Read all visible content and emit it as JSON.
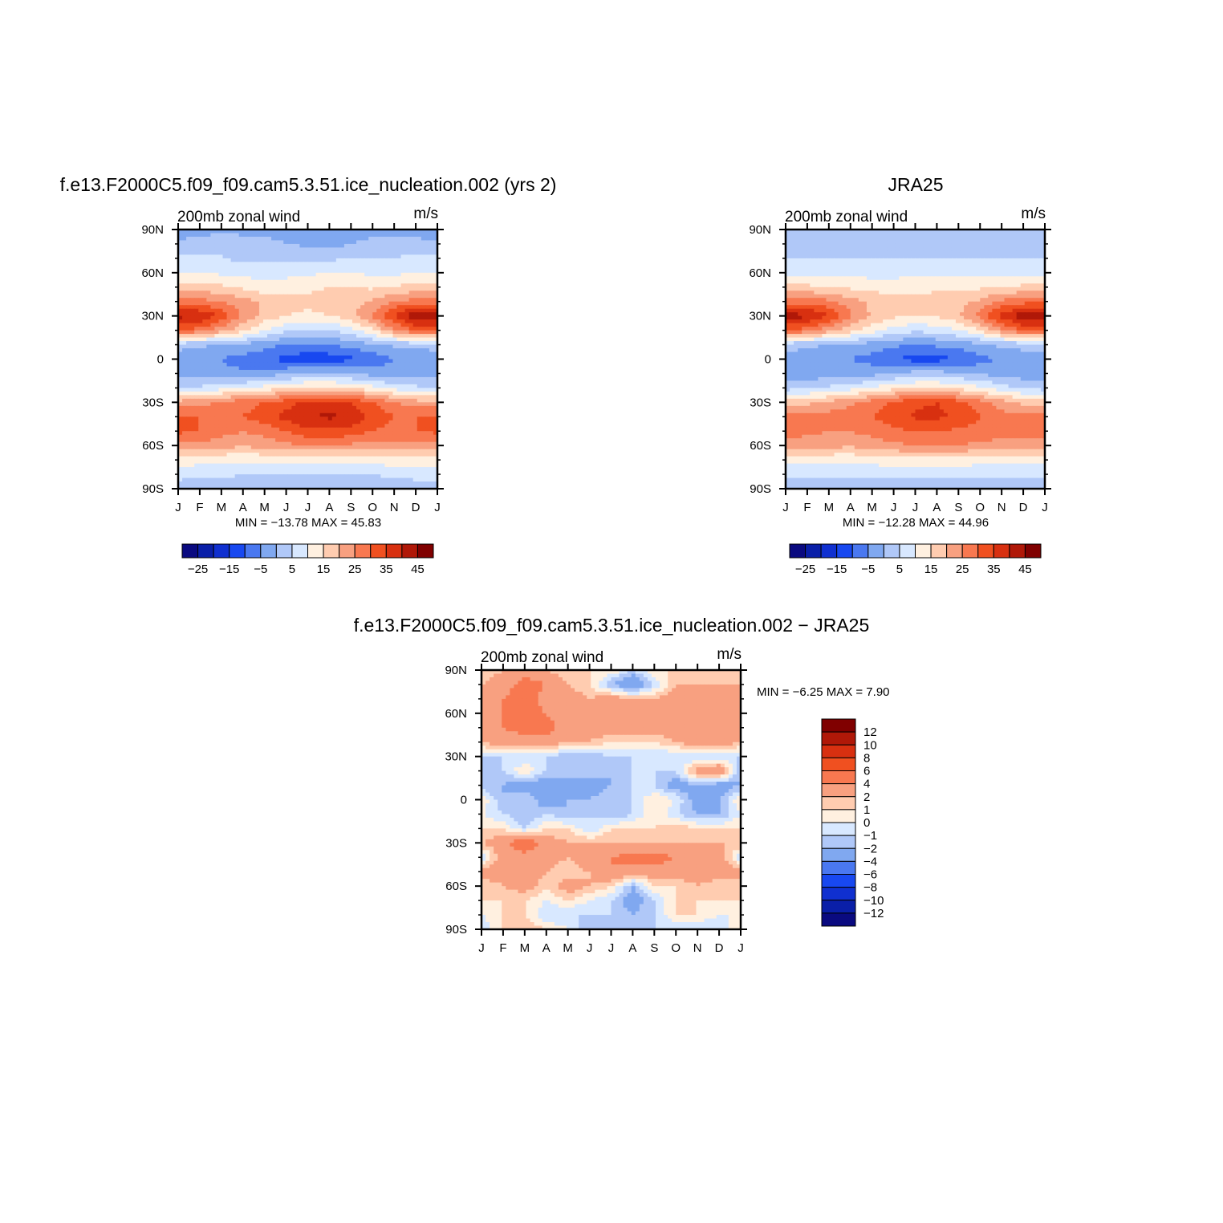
{
  "panels": [
    {
      "title": "f.e13.F2000C5.f09_f09.cam5.3.51.ice_nucleation.002  (yrs  2)",
      "left_label": "200mb  zonal  wind",
      "right_label": "m/s",
      "min_max": "MIN  =   −13.78  MAX  =     45.83",
      "colorbar_labels": [
        "−25",
        "−15",
        "−5",
        "5",
        "15",
        "25",
        "35",
        "45"
      ]
    },
    {
      "title": "JRA25",
      "left_label": "200mb  zonal  wind",
      "right_label": "m/s",
      "min_max": "MIN  =   −12.28  MAX  =     44.96",
      "colorbar_labels": [
        "−25",
        "−15",
        "−5",
        "5",
        "15",
        "25",
        "35",
        "45"
      ]
    },
    {
      "title": "f.e13.F2000C5.f09_f09.cam5.3.51.ice_nucleation.002  −  JRA25",
      "left_label": "200mb  zonal  wind",
      "right_label": "m/s",
      "min_max": "MIN  =     −6.25  MAX  =       7.90",
      "colorbar_labels": [
        "12",
        "10",
        "8",
        "6",
        "4",
        "2",
        "1",
        "0",
        "−1",
        "−2",
        "−4",
        "−6",
        "−8",
        "−10",
        "−12"
      ]
    }
  ],
  "chart_data": [
    {
      "type": "heatmap",
      "title": "f.e13.F2000C5.f09_f09.cam5.3.51.ice_nucleation.002  (yrs  2)",
      "variable": "200mb zonal wind",
      "units": "m/s",
      "x_ticks": [
        "J",
        "F",
        "M",
        "A",
        "M",
        "J",
        "J",
        "A",
        "S",
        "O",
        "N",
        "D",
        "J"
      ],
      "y_ticks": [
        "90N",
        "60N",
        "30N",
        "0",
        "30S",
        "60S",
        "90S"
      ],
      "x_range": [
        0,
        12
      ],
      "y_range": [
        -90,
        90
      ],
      "min": -13.78,
      "max": 45.83,
      "contour_levels": [
        -25,
        -20,
        -15,
        -10,
        -5,
        0,
        5,
        10,
        15,
        20,
        25,
        30,
        35,
        40,
        45
      ],
      "colors": [
        "#0a0a80",
        "#0a1fa8",
        "#1030d0",
        "#1848f0",
        "#4a78f0",
        "#80a8f0",
        "#b0c8f8",
        "#d8e8ff",
        "#fff0e0",
        "#ffccb0",
        "#f8a080",
        "#f87850",
        "#f05020",
        "#d83010",
        "#b01808",
        "#800000"
      ],
      "latitudes": [
        -90,
        -80,
        -70,
        -60,
        -50,
        -40,
        -30,
        -20,
        -10,
        0,
        10,
        20,
        30,
        40,
        50,
        60,
        70,
        80,
        90
      ],
      "months": [
        "Jan",
        "Feb",
        "Mar",
        "Apr",
        "May",
        "Jun",
        "Jul",
        "Aug",
        "Sep",
        "Oct",
        "Nov",
        "Dec",
        "Jan"
      ],
      "values": [
        [
          2,
          2,
          2,
          2,
          2,
          2,
          1,
          1,
          1,
          2,
          2,
          2,
          2
        ],
        [
          7,
          6,
          6,
          5,
          5,
          5,
          5,
          5,
          5,
          5,
          6,
          7,
          7
        ],
        [
          13,
          12,
          11,
          11,
          11,
          11,
          11,
          11,
          11,
          12,
          13,
          13,
          13
        ],
        [
          24,
          24,
          22,
          21,
          22,
          24,
          25,
          25,
          24,
          23,
          24,
          24,
          24
        ],
        [
          31,
          30,
          27,
          25,
          27,
          30,
          34,
          34,
          33,
          30,
          28,
          30,
          31
        ],
        [
          30,
          30,
          30,
          30,
          33,
          37,
          40,
          41,
          39,
          34,
          30,
          30,
          30
        ],
        [
          22,
          23,
          26,
          28,
          30,
          33,
          36,
          37,
          35,
          30,
          25,
          22,
          22
        ],
        [
          5,
          6,
          8,
          10,
          12,
          14,
          16,
          16,
          14,
          12,
          8,
          6,
          5
        ],
        [
          -2,
          -3,
          -4,
          -4,
          -3,
          -1,
          1,
          1,
          0,
          -2,
          -3,
          -2,
          -2
        ],
        [
          -3,
          -4,
          -5,
          -7,
          -9,
          -12,
          -13,
          -13,
          -11,
          -8,
          -5,
          -4,
          -3
        ],
        [
          2,
          1,
          0,
          -1,
          -3,
          -5,
          -6,
          -5,
          -3,
          -1,
          1,
          2,
          2
        ],
        [
          30,
          28,
          22,
          16,
          10,
          6,
          4,
          5,
          8,
          14,
          24,
          30,
          30
        ],
        [
          42,
          40,
          34,
          24,
          18,
          15,
          14,
          15,
          18,
          26,
          36,
          44,
          45
        ],
        [
          27,
          27,
          25,
          22,
          19,
          17,
          16,
          17,
          18,
          21,
          25,
          27,
          27
        ],
        [
          17,
          17,
          16,
          14,
          12,
          13,
          14,
          15,
          15,
          14,
          15,
          17,
          17
        ],
        [
          10,
          10,
          9,
          8,
          8,
          8,
          9,
          10,
          10,
          9,
          9,
          10,
          10
        ],
        [
          6,
          6,
          5,
          4,
          4,
          4,
          4,
          4,
          5,
          5,
          5,
          6,
          6
        ],
        [
          1,
          3,
          5,
          3,
          2,
          0,
          -1,
          -2,
          0,
          2,
          3,
          2,
          1
        ],
        [
          -3,
          -3,
          -2,
          -2,
          -2,
          -3,
          -3,
          -3,
          -3,
          -3,
          -3,
          -3,
          -3
        ]
      ]
    },
    {
      "type": "heatmap",
      "title": "JRA25",
      "variable": "200mb zonal wind",
      "units": "m/s",
      "x_ticks": [
        "J",
        "F",
        "M",
        "A",
        "M",
        "J",
        "J",
        "A",
        "S",
        "O",
        "N",
        "D",
        "J"
      ],
      "y_ticks": [
        "90N",
        "60N",
        "30N",
        "0",
        "30S",
        "60S",
        "90S"
      ],
      "x_range": [
        0,
        12
      ],
      "y_range": [
        -90,
        90
      ],
      "min": -12.28,
      "max": 44.96,
      "contour_levels": [
        -25,
        -20,
        -15,
        -10,
        -5,
        0,
        5,
        10,
        15,
        20,
        25,
        30,
        35,
        40,
        45
      ],
      "colors": [
        "#0a0a80",
        "#0a1fa8",
        "#1030d0",
        "#1848f0",
        "#4a78f0",
        "#80a8f0",
        "#b0c8f8",
        "#d8e8ff",
        "#fff0e0",
        "#ffccb0",
        "#f8a080",
        "#f87850",
        "#f05020",
        "#d83010",
        "#b01808",
        "#800000"
      ],
      "latitudes": [
        -90,
        -80,
        -70,
        -60,
        -50,
        -40,
        -30,
        -20,
        -10,
        0,
        10,
        20,
        30,
        40,
        50,
        60,
        70,
        80,
        90
      ],
      "months": [
        "Jan",
        "Feb",
        "Mar",
        "Apr",
        "May",
        "Jun",
        "Jul",
        "Aug",
        "Sep",
        "Oct",
        "Nov",
        "Dec",
        "Jan"
      ],
      "values": [
        [
          3,
          3,
          3,
          3,
          3,
          3,
          3,
          3,
          3,
          3,
          3,
          3,
          3
        ],
        [
          6,
          6,
          6,
          6,
          6,
          6,
          6,
          6,
          6,
          6,
          6,
          6,
          6
        ],
        [
          12,
          12,
          11,
          11,
          12,
          13,
          13,
          13,
          13,
          12,
          12,
          12,
          12
        ],
        [
          23,
          23,
          22,
          21,
          22,
          24,
          25,
          25,
          25,
          24,
          23,
          23,
          23
        ],
        [
          27,
          26,
          25,
          25,
          27,
          29,
          30,
          30,
          29,
          28,
          27,
          27,
          27
        ],
        [
          26,
          26,
          27,
          28,
          30,
          33,
          36,
          36,
          34,
          30,
          27,
          26,
          26
        ],
        [
          18,
          19,
          21,
          24,
          27,
          31,
          34,
          35,
          32,
          27,
          22,
          19,
          18
        ],
        [
          3,
          4,
          6,
          8,
          11,
          13,
          15,
          15,
          13,
          11,
          7,
          4,
          3
        ],
        [
          -3,
          -3,
          -3,
          -3,
          -2,
          0,
          2,
          2,
          1,
          -1,
          -2,
          -3,
          -3
        ],
        [
          -2,
          -3,
          -4,
          -5,
          -7,
          -10,
          -12,
          -12,
          -10,
          -7,
          -4,
          -3,
          -2
        ],
        [
          2,
          1,
          0,
          -1,
          -2,
          -4,
          -5,
          -4,
          -3,
          -1,
          1,
          2,
          2
        ],
        [
          30,
          28,
          22,
          17,
          12,
          8,
          6,
          7,
          10,
          15,
          24,
          30,
          30
        ],
        [
          43,
          41,
          35,
          26,
          19,
          16,
          15,
          16,
          19,
          27,
          37,
          44,
          45
        ],
        [
          28,
          28,
          26,
          22,
          19,
          17,
          16,
          17,
          18,
          21,
          26,
          28,
          28
        ],
        [
          16,
          16,
          15,
          14,
          13,
          13,
          14,
          14,
          14,
          14,
          15,
          16,
          16
        ],
        [
          9,
          9,
          9,
          8,
          8,
          8,
          8,
          9,
          9,
          9,
          9,
          9,
          9
        ],
        [
          5,
          5,
          5,
          5,
          5,
          5,
          5,
          5,
          5,
          5,
          5,
          5,
          5
        ],
        [
          4,
          4,
          4,
          4,
          4,
          4,
          4,
          4,
          4,
          4,
          4,
          4,
          4
        ],
        [
          3,
          3,
          3,
          3,
          3,
          3,
          3,
          3,
          3,
          3,
          3,
          3,
          3
        ]
      ]
    },
    {
      "type": "heatmap",
      "title": "f.e13.F2000C5.f09_f09.cam5.3.51.ice_nucleation.002  −  JRA25",
      "variable": "200mb zonal wind",
      "units": "m/s",
      "x_ticks": [
        "J",
        "F",
        "M",
        "A",
        "M",
        "J",
        "J",
        "A",
        "S",
        "O",
        "N",
        "D",
        "J"
      ],
      "y_ticks": [
        "90N",
        "60N",
        "30N",
        "0",
        "30S",
        "60S",
        "90S"
      ],
      "x_range": [
        0,
        12
      ],
      "y_range": [
        -90,
        90
      ],
      "min": -6.25,
      "max": 7.9,
      "contour_levels": [
        -12,
        -10,
        -8,
        -6,
        -4,
        -2,
        -1,
        0,
        1,
        2,
        4,
        6,
        8,
        10,
        12
      ],
      "colors": [
        "#0a0a80",
        "#0a1fa8",
        "#1030d0",
        "#1848f0",
        "#4a78f0",
        "#80a8f0",
        "#b0c8f8",
        "#d8e8ff",
        "#fff0e0",
        "#ffccb0",
        "#f8a080",
        "#f87850",
        "#f05020",
        "#d83010",
        "#b01808",
        "#800000"
      ],
      "latitudes": [
        -90,
        -80,
        -70,
        -60,
        -50,
        -40,
        -30,
        -20,
        -10,
        0,
        10,
        20,
        30,
        40,
        50,
        60,
        70,
        80,
        90
      ],
      "months": [
        "Jan",
        "Feb",
        "Mar",
        "Apr",
        "May",
        "Jun",
        "Jul",
        "Aug",
        "Sep",
        "Oct",
        "Nov",
        "Dec",
        "Jan"
      ],
      "values": [
        [
          -1,
          1,
          2,
          1,
          0,
          -2,
          -1,
          -1,
          -1,
          -1,
          -1,
          -1,
          1
        ],
        [
          0,
          1,
          1,
          -1,
          -1,
          -1,
          -1,
          -2,
          -1,
          1,
          1,
          0,
          0
        ],
        [
          1,
          1,
          1,
          0,
          1,
          0,
          -1,
          -3,
          -1,
          1,
          1,
          1,
          1
        ],
        [
          1,
          2,
          3,
          1,
          3,
          2,
          1,
          -2,
          1,
          1,
          2,
          1,
          1
        ],
        [
          3,
          3,
          4,
          2,
          1,
          2,
          4,
          3,
          3,
          3,
          3,
          3,
          3
        ],
        [
          -1,
          3,
          3,
          3,
          2,
          4,
          4,
          5,
          5,
          4,
          3,
          3,
          -1
        ],
        [
          2,
          3,
          6,
          3,
          2,
          2,
          2,
          2,
          2,
          2,
          2,
          2,
          2
        ],
        [
          1,
          1,
          -1,
          1,
          1,
          -1,
          1,
          1,
          1,
          2,
          1,
          1,
          1
        ],
        [
          0,
          -1,
          -2,
          -1,
          -2,
          -1,
          -2,
          -1,
          1,
          -1,
          -2,
          -2,
          0
        ],
        [
          1,
          -2,
          -1,
          -3,
          -2,
          -2,
          -1,
          -1,
          1,
          0,
          -3,
          -2,
          1
        ],
        [
          -2,
          -2,
          -3,
          -3,
          -2,
          -3,
          -2,
          -1,
          -1,
          -3,
          -2,
          -3,
          -2
        ],
        [
          -2,
          -1,
          1,
          -1,
          -2,
          -1,
          -2,
          -1,
          -1,
          -1,
          3,
          4,
          -2
        ],
        [
          -1,
          -1,
          -1,
          -1,
          -2,
          -2,
          -1,
          -1,
          -1,
          -1,
          -1,
          -1,
          -1
        ],
        [
          2,
          3,
          3,
          3,
          2,
          2,
          1,
          1,
          1,
          2,
          3,
          3,
          2
        ],
        [
          3,
          4,
          5,
          5,
          3,
          3,
          3,
          3,
          3,
          3,
          3,
          3,
          3
        ],
        [
          2,
          4,
          5,
          4,
          2,
          2,
          3,
          2,
          3,
          3,
          2,
          3,
          2
        ],
        [
          3,
          4,
          5,
          3,
          3,
          2,
          3,
          2,
          2,
          3,
          3,
          3,
          3
        ],
        [
          2,
          3,
          5,
          4,
          2,
          1,
          -2,
          -4,
          -1,
          2,
          2,
          2,
          2
        ],
        [
          1,
          2,
          3,
          2,
          1,
          1,
          1,
          -1,
          1,
          1,
          1,
          1,
          1
        ]
      ]
    }
  ]
}
